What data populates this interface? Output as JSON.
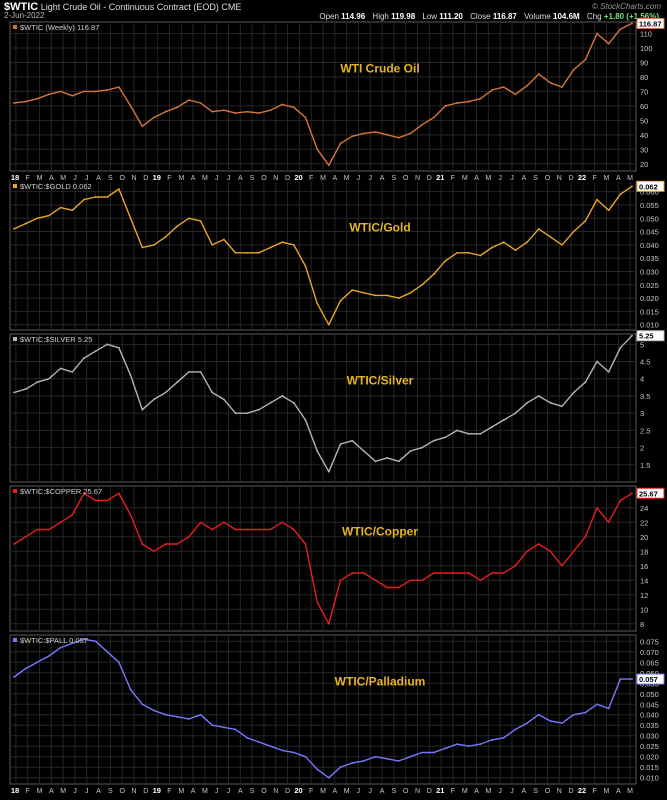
{
  "header": {
    "symbol": "$WTIC",
    "description": "Light Crude Oil - Continuous Contract (EOD)",
    "exchange": "CME",
    "date": "2-Jun-2022",
    "credit": "© StockCharts.com",
    "open_label": "Open",
    "open": "114.96",
    "high_label": "High",
    "high": "119.98",
    "low_label": "Low",
    "low": "111.20",
    "close_label": "Close",
    "close": "116.87",
    "volume_label": "Volume",
    "volume": "104.6M",
    "chg_label": "Chg",
    "chg": "+1.80 (+1.56%)"
  },
  "colors": {
    "background": "#000000",
    "grid": "#262626",
    "border": "#5a5a5a",
    "axis_text": "#c8c8c8"
  },
  "x_axis": {
    "ticks": [
      "18",
      "F",
      "M",
      "A",
      "M",
      "J",
      "J",
      "A",
      "S",
      "O",
      "N",
      "D",
      "19",
      "F",
      "M",
      "A",
      "M",
      "J",
      "J",
      "A",
      "S",
      "O",
      "N",
      "D",
      "20",
      "F",
      "M",
      "A",
      "M",
      "J",
      "J",
      "A",
      "S",
      "O",
      "N",
      "D",
      "21",
      "F",
      "M",
      "A",
      "M",
      "J",
      "J",
      "A",
      "S",
      "O",
      "N",
      "D",
      "22",
      "F",
      "M",
      "A",
      "M"
    ],
    "year_ticks": [
      "18",
      "19",
      "20",
      "21",
      "22"
    ]
  },
  "chart_data": [
    {
      "type": "line",
      "legend": "$WTIC (Weekly) 116.87",
      "title": "WTI Crude Oil",
      "color": "#d4763c",
      "title_color": "#e8b420",
      "last_value_label": "116.87",
      "ylim": [
        15,
        118
      ],
      "y_ticks": [
        20,
        30,
        40,
        50,
        60,
        70,
        80,
        90,
        100,
        110
      ],
      "x": [
        "2018-01",
        "2018-02",
        "2018-03",
        "2018-04",
        "2018-05",
        "2018-06",
        "2018-07",
        "2018-08",
        "2018-09",
        "2018-10",
        "2018-11",
        "2018-12",
        "2019-01",
        "2019-02",
        "2019-03",
        "2019-04",
        "2019-05",
        "2019-06",
        "2019-07",
        "2019-08",
        "2019-09",
        "2019-10",
        "2019-11",
        "2019-12",
        "2020-01",
        "2020-02",
        "2020-03",
        "2020-04",
        "2020-05",
        "2020-06",
        "2020-07",
        "2020-08",
        "2020-09",
        "2020-10",
        "2020-11",
        "2020-12",
        "2021-01",
        "2021-02",
        "2021-03",
        "2021-04",
        "2021-05",
        "2021-06",
        "2021-07",
        "2021-08",
        "2021-09",
        "2021-10",
        "2021-11",
        "2021-12",
        "2022-01",
        "2022-02",
        "2022-03",
        "2022-04",
        "2022-05",
        "2022-06"
      ],
      "values": [
        62,
        63,
        65,
        68,
        70,
        67,
        70,
        70,
        71,
        73,
        60,
        46,
        52,
        56,
        59,
        64,
        62,
        56,
        57,
        55,
        56,
        55,
        57,
        61,
        59,
        52,
        30,
        19,
        34,
        39,
        41,
        42,
        40,
        38,
        41,
        47,
        52,
        60,
        62,
        63,
        65,
        71,
        73,
        68,
        74,
        82,
        76,
        73,
        85,
        92,
        110,
        103,
        113,
        117
      ]
    },
    {
      "type": "line",
      "legend": "$WTIC:$GOLD 0.062",
      "title": "WTIC/Gold",
      "color": "#e8a628",
      "title_color": "#e8b420",
      "last_value_label": "0.062",
      "ylim": [
        0.008,
        0.064
      ],
      "y_ticks": [
        0.01,
        0.015,
        0.02,
        0.025,
        0.03,
        0.035,
        0.04,
        0.045,
        0.05,
        0.055,
        0.06
      ],
      "x": [
        "2018-01",
        "2018-02",
        "2018-03",
        "2018-04",
        "2018-05",
        "2018-06",
        "2018-07",
        "2018-08",
        "2018-09",
        "2018-10",
        "2018-11",
        "2018-12",
        "2019-01",
        "2019-02",
        "2019-03",
        "2019-04",
        "2019-05",
        "2019-06",
        "2019-07",
        "2019-08",
        "2019-09",
        "2019-10",
        "2019-11",
        "2019-12",
        "2020-01",
        "2020-02",
        "2020-03",
        "2020-04",
        "2020-05",
        "2020-06",
        "2020-07",
        "2020-08",
        "2020-09",
        "2020-10",
        "2020-11",
        "2020-12",
        "2021-01",
        "2021-02",
        "2021-03",
        "2021-04",
        "2021-05",
        "2021-06",
        "2021-07",
        "2021-08",
        "2021-09",
        "2021-10",
        "2021-11",
        "2021-12",
        "2022-01",
        "2022-02",
        "2022-03",
        "2022-04",
        "2022-05",
        "2022-06"
      ],
      "values": [
        0.046,
        0.048,
        0.05,
        0.051,
        0.054,
        0.053,
        0.057,
        0.058,
        0.058,
        0.061,
        0.05,
        0.039,
        0.04,
        0.043,
        0.047,
        0.05,
        0.049,
        0.04,
        0.042,
        0.037,
        0.037,
        0.037,
        0.039,
        0.041,
        0.04,
        0.032,
        0.018,
        0.01,
        0.019,
        0.023,
        0.022,
        0.021,
        0.021,
        0.02,
        0.022,
        0.025,
        0.029,
        0.034,
        0.037,
        0.037,
        0.036,
        0.039,
        0.041,
        0.038,
        0.041,
        0.046,
        0.043,
        0.04,
        0.045,
        0.049,
        0.057,
        0.053,
        0.059,
        0.062
      ]
    },
    {
      "type": "line",
      "legend": "$WTIC:$SILVER 5.25",
      "title": "WTIC/Silver",
      "color": "#b4b4b4",
      "title_color": "#e8b420",
      "last_value_label": "5.25",
      "ylim": [
        1.0,
        5.3
      ],
      "y_ticks": [
        1.5,
        2.0,
        2.5,
        3.0,
        3.5,
        4.0,
        4.5,
        5.0
      ],
      "x": [
        "2018-01",
        "2018-02",
        "2018-03",
        "2018-04",
        "2018-05",
        "2018-06",
        "2018-07",
        "2018-08",
        "2018-09",
        "2018-10",
        "2018-11",
        "2018-12",
        "2019-01",
        "2019-02",
        "2019-03",
        "2019-04",
        "2019-05",
        "2019-06",
        "2019-07",
        "2019-08",
        "2019-09",
        "2019-10",
        "2019-11",
        "2019-12",
        "2020-01",
        "2020-02",
        "2020-03",
        "2020-04",
        "2020-05",
        "2020-06",
        "2020-07",
        "2020-08",
        "2020-09",
        "2020-10",
        "2020-11",
        "2020-12",
        "2021-01",
        "2021-02",
        "2021-03",
        "2021-04",
        "2021-05",
        "2021-06",
        "2021-07",
        "2021-08",
        "2021-09",
        "2021-10",
        "2021-11",
        "2021-12",
        "2022-01",
        "2022-02",
        "2022-03",
        "2022-04",
        "2022-05",
        "2022-06"
      ],
      "values": [
        3.6,
        3.7,
        3.9,
        4.0,
        4.3,
        4.2,
        4.6,
        4.8,
        5.0,
        4.9,
        4.1,
        3.1,
        3.4,
        3.6,
        3.9,
        4.2,
        4.2,
        3.6,
        3.4,
        3.0,
        3.0,
        3.1,
        3.3,
        3.5,
        3.3,
        2.8,
        1.9,
        1.3,
        2.1,
        2.2,
        1.9,
        1.6,
        1.7,
        1.6,
        1.9,
        2.0,
        2.2,
        2.3,
        2.5,
        2.4,
        2.4,
        2.6,
        2.8,
        3.0,
        3.3,
        3.5,
        3.3,
        3.2,
        3.6,
        3.9,
        4.5,
        4.2,
        4.9,
        5.25
      ]
    },
    {
      "type": "line",
      "legend": "$WTIC:$COPPER 25.67",
      "title": "WTIC/Copper",
      "color": "#e61e1e",
      "title_color": "#e8b420",
      "last_value_label": "25.67",
      "ylim": [
        7,
        27
      ],
      "y_ticks": [
        8,
        10,
        12,
        14,
        16,
        18,
        20,
        22,
        24
      ],
      "x": [
        "2018-01",
        "2018-02",
        "2018-03",
        "2018-04",
        "2018-05",
        "2018-06",
        "2018-07",
        "2018-08",
        "2018-09",
        "2018-10",
        "2018-11",
        "2018-12",
        "2019-01",
        "2019-02",
        "2019-03",
        "2019-04",
        "2019-05",
        "2019-06",
        "2019-07",
        "2019-08",
        "2019-09",
        "2019-10",
        "2019-11",
        "2019-12",
        "2020-01",
        "2020-02",
        "2020-03",
        "2020-04",
        "2020-05",
        "2020-06",
        "2020-07",
        "2020-08",
        "2020-09",
        "2020-10",
        "2020-11",
        "2020-12",
        "2021-01",
        "2021-02",
        "2021-03",
        "2021-04",
        "2021-05",
        "2021-06",
        "2021-07",
        "2021-08",
        "2021-09",
        "2021-10",
        "2021-11",
        "2021-12",
        "2022-01",
        "2022-02",
        "2022-03",
        "2022-04",
        "2022-05",
        "2022-06"
      ],
      "values": [
        19,
        20,
        21,
        21,
        22,
        23,
        26,
        25,
        25,
        26,
        23,
        19,
        18,
        19,
        19,
        20,
        22,
        21,
        22,
        21,
        21,
        21,
        21,
        22,
        21,
        19,
        11,
        8,
        14,
        15,
        15,
        14,
        13,
        13,
        14,
        14,
        15,
        15,
        15,
        15,
        14,
        15,
        15,
        16,
        18,
        19,
        18,
        16,
        18,
        20,
        24,
        22,
        25,
        26
      ]
    },
    {
      "type": "line",
      "legend": "$WTIC:$PALL 0.057",
      "title": "WTIC/Palladium",
      "color": "#7878ff",
      "title_color": "#e8b420",
      "last_value_label": "0.057",
      "ylim": [
        0.007,
        0.078
      ],
      "y_ticks": [
        0.01,
        0.015,
        0.02,
        0.025,
        0.03,
        0.035,
        0.04,
        0.045,
        0.05,
        0.055,
        0.06,
        0.065,
        0.07,
        0.075
      ],
      "x": [
        "2018-01",
        "2018-02",
        "2018-03",
        "2018-04",
        "2018-05",
        "2018-06",
        "2018-07",
        "2018-08",
        "2018-09",
        "2018-10",
        "2018-11",
        "2018-12",
        "2019-01",
        "2019-02",
        "2019-03",
        "2019-04",
        "2019-05",
        "2019-06",
        "2019-07",
        "2019-08",
        "2019-09",
        "2019-10",
        "2019-11",
        "2019-12",
        "2020-01",
        "2020-02",
        "2020-03",
        "2020-04",
        "2020-05",
        "2020-06",
        "2020-07",
        "2020-08",
        "2020-09",
        "2020-10",
        "2020-11",
        "2020-12",
        "2021-01",
        "2021-02",
        "2021-03",
        "2021-04",
        "2021-05",
        "2021-06",
        "2021-07",
        "2021-08",
        "2021-09",
        "2021-10",
        "2021-11",
        "2021-12",
        "2022-01",
        "2022-02",
        "2022-03",
        "2022-04",
        "2022-05",
        "2022-06"
      ],
      "values": [
        0.058,
        0.062,
        0.065,
        0.068,
        0.072,
        0.074,
        0.076,
        0.075,
        0.07,
        0.065,
        0.052,
        0.045,
        0.042,
        0.04,
        0.039,
        0.038,
        0.04,
        0.035,
        0.034,
        0.033,
        0.029,
        0.027,
        0.025,
        0.023,
        0.022,
        0.02,
        0.014,
        0.01,
        0.015,
        0.017,
        0.018,
        0.02,
        0.019,
        0.018,
        0.02,
        0.022,
        0.022,
        0.024,
        0.026,
        0.025,
        0.026,
        0.028,
        0.029,
        0.033,
        0.036,
        0.04,
        0.037,
        0.036,
        0.04,
        0.041,
        0.045,
        0.043,
        0.057,
        0.057
      ]
    }
  ]
}
